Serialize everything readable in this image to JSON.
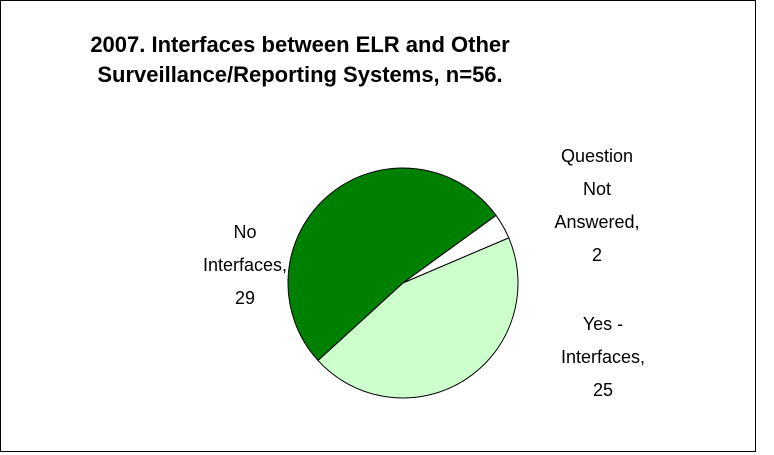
{
  "chart_data": {
    "type": "pie",
    "title": "2007. Interfaces between ELR and Other Surveillance/Reporting Systems, n=56.",
    "categories": [
      "No Interfaces,",
      "Question Not Answered,",
      "Yes - Interfaces,"
    ],
    "values": [
      29,
      2,
      25
    ],
    "colors": [
      "#008000",
      "#ffffff",
      "#ccffcc"
    ]
  }
}
